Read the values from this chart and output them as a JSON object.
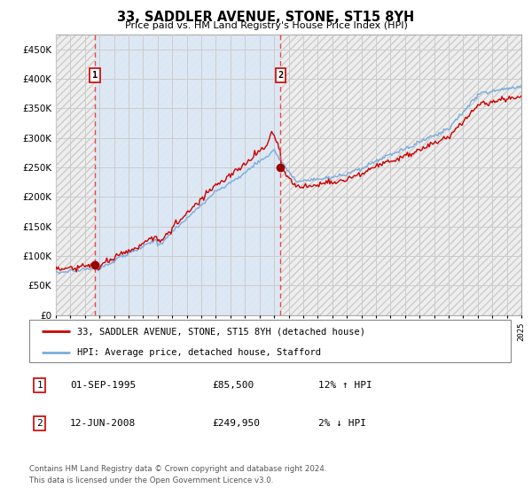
{
  "title": "33, SADDLER AVENUE, STONE, ST15 8YH",
  "subtitle": "Price paid vs. HM Land Registry's House Price Index (HPI)",
  "ylim": [
    0,
    475000
  ],
  "yticks": [
    0,
    50000,
    100000,
    150000,
    200000,
    250000,
    300000,
    350000,
    400000,
    450000
  ],
  "ytick_labels": [
    "£0",
    "£50K",
    "£100K",
    "£150K",
    "£200K",
    "£250K",
    "£300K",
    "£350K",
    "£400K",
    "£450K"
  ],
  "x_start_year": 1993,
  "x_end_year": 2025,
  "sale1_date": 1995.67,
  "sale1_price": 85500,
  "sale1_label": "1",
  "sale2_date": 2008.45,
  "sale2_price": 249950,
  "sale2_label": "2",
  "hpi_color": "#7aacdc",
  "price_color": "#cc0000",
  "dashed_color": "#ee4444",
  "grid_color": "#cccccc",
  "background_color": "#ffffff",
  "plot_bg_color": "#dce8f5",
  "hatch_bg_color": "#e8e8e8",
  "legend_label_price": "33, SADDLER AVENUE, STONE, ST15 8YH (detached house)",
  "legend_label_hpi": "HPI: Average price, detached house, Stafford",
  "footer_line1": "Contains HM Land Registry data © Crown copyright and database right 2024.",
  "footer_line2": "This data is licensed under the Open Government Licence v3.0.",
  "table_row1": [
    "1",
    "01-SEP-1995",
    "£85,500",
    "12% ↑ HPI"
  ],
  "table_row2": [
    "2",
    "12-JUN-2008",
    "£249,950",
    "2% ↓ HPI"
  ]
}
